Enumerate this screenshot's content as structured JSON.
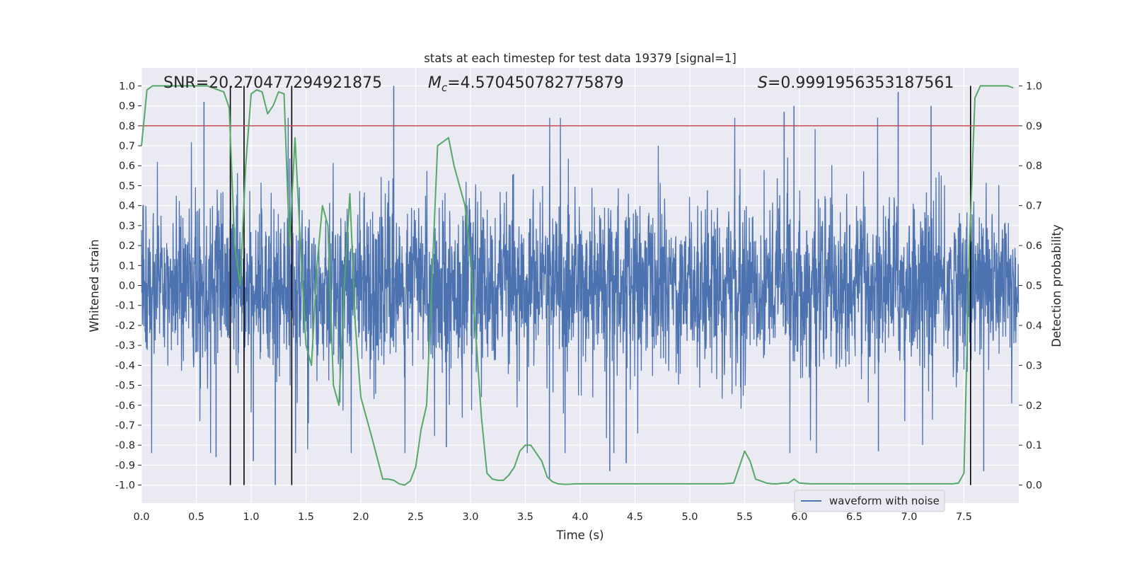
{
  "chart_data": {
    "type": "line",
    "title": "stats at each timestep for test data 19379 [signal=1]",
    "xlabel": "Time (s)",
    "ylabel": "Whitened strain",
    "y2label": "Detection probability",
    "xlim": [
      0,
      8
    ],
    "ylim": [
      -1.09,
      1.09
    ],
    "y2lim": [
      -0.045,
      1.045
    ],
    "xticks": [
      0.0,
      0.5,
      1.0,
      1.5,
      2.0,
      2.5,
      3.0,
      3.5,
      4.0,
      4.5,
      5.0,
      5.5,
      6.0,
      6.5,
      7.0,
      7.5
    ],
    "xtick_labels": [
      "0.0",
      "0.5",
      "1.0",
      "1.5",
      "2.0",
      "2.5",
      "3.0",
      "3.5",
      "4.0",
      "4.5",
      "5.0",
      "5.5",
      "6.0",
      "6.5",
      "7.0",
      "7.5"
    ],
    "yticks": [
      1.0,
      0.9,
      0.8,
      0.7,
      0.6,
      0.5,
      0.4,
      0.3,
      0.2,
      0.1,
      0.0,
      -0.1,
      -0.2,
      -0.3,
      -0.4,
      -0.5,
      -0.6,
      -0.7,
      -0.8,
      -0.9,
      -1.0
    ],
    "ytick_labels": [
      "1.0",
      "0.9",
      "0.8",
      "0.7",
      "0.6",
      "0.5",
      "0.4",
      "0.3",
      "0.2",
      "0.1",
      "0.0",
      "-0.1",
      "-0.2",
      "-0.3",
      "-0.4",
      "-0.5",
      "-0.6",
      "-0.7",
      "-0.8",
      "-0.9",
      "-1.0"
    ],
    "y2ticks": [
      1.0,
      0.9,
      0.8,
      0.7,
      0.6,
      0.5,
      0.4,
      0.3,
      0.2,
      0.1,
      0.0
    ],
    "y2tick_labels": [
      "1.0",
      "0.9",
      "0.8",
      "0.7",
      "0.6",
      "0.5",
      "0.4",
      "0.3",
      "0.2",
      "0.1",
      "0.0"
    ],
    "annotations": {
      "snr": "SNR=20.270477294921875",
      "mc": "=4.570450782775879",
      "s": "=0.9991956353187561"
    },
    "threshold": {
      "value": 0.9,
      "axis": "y2",
      "color": "#c44e52"
    },
    "vertical_lines": [
      0.81,
      0.935,
      1.37,
      7.56
    ],
    "vertical_line_range": [
      -1.0,
      1.0
    ],
    "legend": {
      "label": "waveform with noise",
      "placement": "lower-right"
    },
    "waveform_color": "#4c72b0",
    "probability_color": "#55a868",
    "series": [
      {
        "name": "waveform with noise",
        "axis": "y",
        "color": "#4c72b0",
        "note": "dense noisy strain signal, envelope roughly +/-0.45 with spikes to +/-1.0",
        "spikes": [
          [
            0.57,
            0.92
          ],
          [
            1.22,
            -1.0
          ],
          [
            2.3,
            1.0
          ],
          [
            3.72,
            -0.97
          ],
          [
            5.95,
            0.9
          ],
          [
            6.9,
            0.97
          ],
          [
            7.68,
            -0.93
          ],
          [
            1.02,
            -0.88
          ],
          [
            4.27,
            -0.93
          ],
          [
            4.42,
            -0.89
          ],
          [
            0.68,
            -0.86
          ],
          [
            2.78,
            -0.81
          ],
          [
            6.72,
            -0.83
          ],
          [
            5.86,
            0.87
          ],
          [
            7.2,
            0.9
          ]
        ]
      },
      {
        "name": "detection probability",
        "axis": "y2",
        "color": "#55a868",
        "x": [
          0.0,
          0.05,
          0.1,
          0.2,
          0.3,
          0.4,
          0.5,
          0.6,
          0.65,
          0.7,
          0.75,
          0.8,
          0.85,
          0.9,
          0.95,
          1.0,
          1.05,
          1.1,
          1.15,
          1.2,
          1.25,
          1.3,
          1.35,
          1.4,
          1.45,
          1.5,
          1.55,
          1.6,
          1.65,
          1.7,
          1.75,
          1.8,
          1.85,
          1.9,
          1.95,
          2.0,
          2.1,
          2.2,
          2.25,
          2.3,
          2.35,
          2.4,
          2.45,
          2.5,
          2.55,
          2.6,
          2.7,
          2.8,
          2.85,
          2.9,
          2.95,
          3.0,
          3.05,
          3.1,
          3.15,
          3.2,
          3.25,
          3.3,
          3.35,
          3.4,
          3.45,
          3.5,
          3.55,
          3.6,
          3.65,
          3.7,
          3.75,
          3.8,
          3.85,
          3.9,
          3.95,
          4.0,
          4.1,
          4.2,
          4.5,
          4.8,
          5.0,
          5.1,
          5.2,
          5.3,
          5.4,
          5.5,
          5.55,
          5.6,
          5.65,
          5.7,
          5.75,
          5.8,
          5.85,
          5.9,
          5.95,
          6.0,
          6.1,
          6.5,
          7.0,
          7.3,
          7.4,
          7.45,
          7.5,
          7.55,
          7.6,
          7.65,
          7.7,
          7.8,
          7.9,
          7.95
        ],
        "values": [
          0.85,
          0.99,
          1.0,
          1.0,
          1.0,
          1.0,
          1.0,
          1.0,
          0.995,
          0.99,
          0.985,
          0.945,
          0.6,
          0.5,
          0.8,
          0.98,
          0.99,
          0.985,
          0.93,
          0.95,
          0.985,
          0.98,
          0.6,
          0.87,
          0.6,
          0.35,
          0.3,
          0.55,
          0.7,
          0.65,
          0.25,
          0.2,
          0.5,
          0.73,
          0.4,
          0.22,
          0.12,
          0.015,
          0.015,
          0.012,
          0.003,
          0.0,
          0.01,
          0.045,
          0.14,
          0.2,
          0.85,
          0.87,
          0.8,
          0.75,
          0.7,
          0.57,
          0.37,
          0.17,
          0.03,
          0.015,
          0.012,
          0.012,
          0.025,
          0.045,
          0.085,
          0.1,
          0.1,
          0.08,
          0.06,
          0.02,
          0.008,
          0.003,
          0.002,
          0.002,
          0.003,
          0.003,
          0.003,
          0.003,
          0.003,
          0.003,
          0.003,
          0.003,
          0.003,
          0.003,
          0.005,
          0.085,
          0.06,
          0.015,
          0.01,
          0.005,
          0.003,
          0.003,
          0.005,
          0.005,
          0.015,
          0.005,
          0.003,
          0.003,
          0.003,
          0.003,
          0.003,
          0.005,
          0.03,
          0.6,
          0.97,
          1.0,
          1.0,
          1.0,
          1.0,
          0.995
        ]
      }
    ]
  }
}
